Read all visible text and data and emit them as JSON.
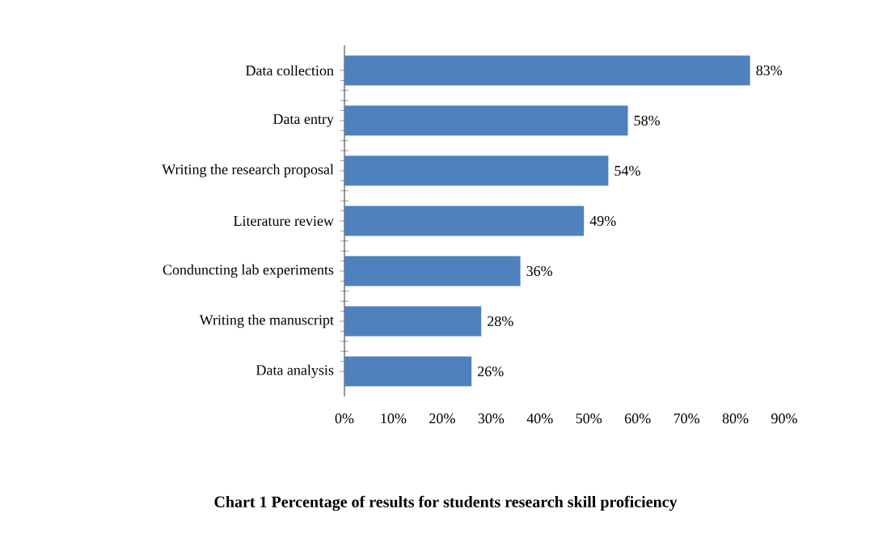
{
  "chart_data": {
    "type": "bar",
    "orientation": "horizontal",
    "title": "Chart 1 Percentage of results for students research skill proficiency",
    "categories": [
      "Data collection",
      "Data entry",
      "Writing the research proposal",
      "Literature review",
      "Conduncting lab experiments",
      "Writing the manuscript",
      "Data analysis"
    ],
    "values": [
      83,
      58,
      54,
      49,
      36,
      28,
      26
    ],
    "value_labels": [
      "83%",
      "58%",
      "54%",
      "49%",
      "36%",
      "28%",
      "26%"
    ],
    "color": "#4f81bd",
    "xlim": [
      0,
      90
    ],
    "xticks": [
      {
        "value": 0,
        "label": "0%"
      },
      {
        "value": 10,
        "label": "10%"
      },
      {
        "value": 20,
        "label": "20%"
      },
      {
        "value": 30,
        "label": "30%"
      },
      {
        "value": 40,
        "label": "40%"
      },
      {
        "value": 50,
        "label": "50%"
      },
      {
        "value": 60,
        "label": "60%"
      },
      {
        "value": 70,
        "label": "70%"
      },
      {
        "value": 80,
        "label": "80%"
      },
      {
        "value": 90,
        "label": "90%"
      }
    ]
  }
}
